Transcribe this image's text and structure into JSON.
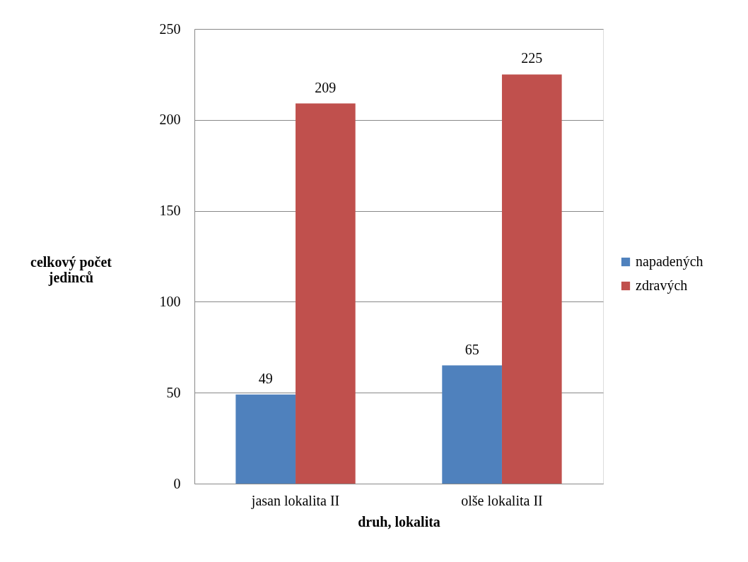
{
  "chart_data": {
    "type": "bar",
    "xlabel": "druh, lokalita",
    "ylabel": "celkový počet jedinců",
    "categories": [
      "jasan lokalita II",
      "olše lokalita II"
    ],
    "series": [
      {
        "name": "napadených",
        "color": "#4f81bd",
        "values": [
          49,
          65
        ]
      },
      {
        "name": "zdravých",
        "color": "#c0504d",
        "values": [
          209,
          225
        ]
      }
    ],
    "ylim": [
      0,
      250
    ],
    "yticks": [
      0,
      50,
      100,
      150,
      200,
      250
    ],
    "grid": "y",
    "legend": "right",
    "data_labels": true
  }
}
